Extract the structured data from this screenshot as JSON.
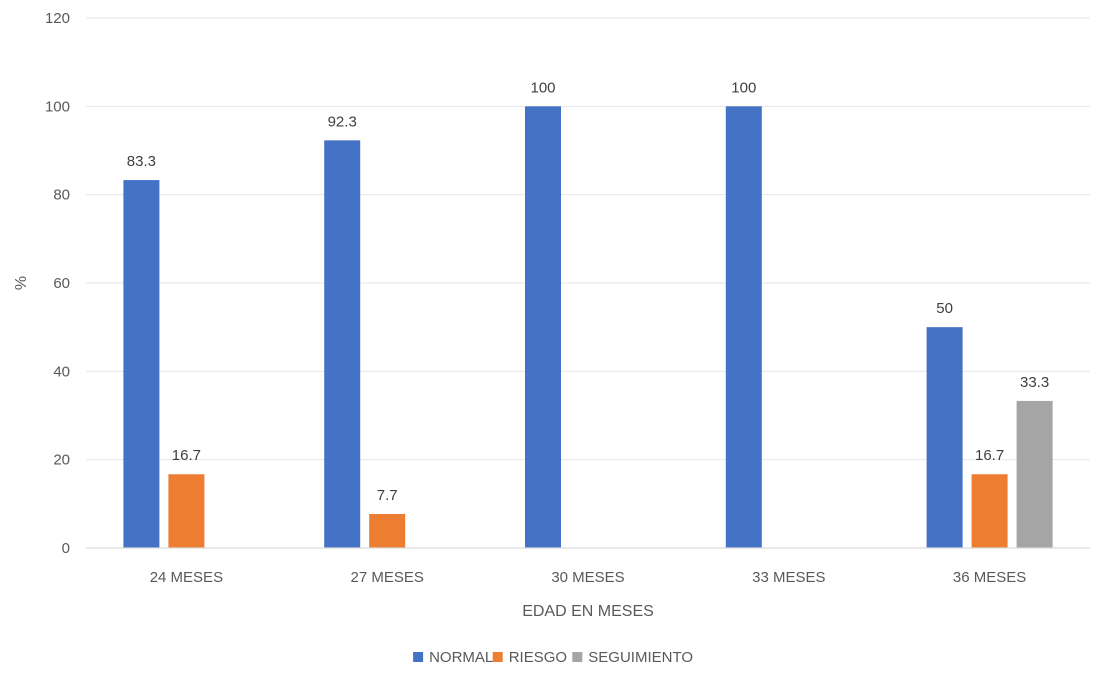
{
  "chart_data": {
    "type": "bar",
    "title": "",
    "xlabel": "EDAD EN MESES",
    "ylabel": "%",
    "ylim": [
      0,
      120
    ],
    "yticks": [
      0,
      20,
      40,
      60,
      80,
      100,
      120
    ],
    "grid": true,
    "legend_position": "bottom",
    "categories": [
      "24 MESES",
      "27 MESES",
      "30 MESES",
      "33 MESES",
      "36 MESES"
    ],
    "series": [
      {
        "name": "NORMAL",
        "color": "#4472C4",
        "values": [
          83.3,
          92.3,
          100,
          100,
          50
        ]
      },
      {
        "name": "RIESGO",
        "color": "#ED7D31",
        "values": [
          16.7,
          7.7,
          null,
          null,
          16.7
        ]
      },
      {
        "name": "SEGUIMIENTO",
        "color": "#A5A5A5",
        "values": [
          null,
          null,
          null,
          null,
          33.3
        ]
      }
    ],
    "data_labels": [
      [
        "83.3",
        "92.3",
        "100",
        "100",
        "50"
      ],
      [
        "16.7",
        "7.7",
        "",
        "",
        "16.7"
      ],
      [
        "",
        "",
        "",
        "",
        "33.3"
      ]
    ]
  }
}
